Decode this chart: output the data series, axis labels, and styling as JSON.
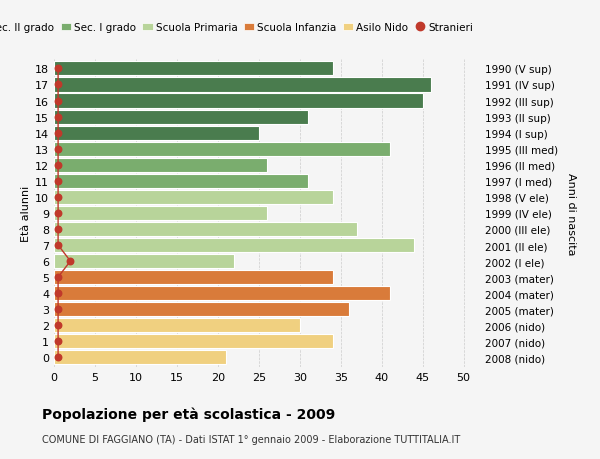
{
  "ages": [
    18,
    17,
    16,
    15,
    14,
    13,
    12,
    11,
    10,
    9,
    8,
    7,
    6,
    5,
    4,
    3,
    2,
    1,
    0
  ],
  "years": [
    "1990 (V sup)",
    "1991 (IV sup)",
    "1992 (III sup)",
    "1993 (II sup)",
    "1994 (I sup)",
    "1995 (III med)",
    "1996 (II med)",
    "1997 (I med)",
    "1998 (V ele)",
    "1999 (IV ele)",
    "2000 (III ele)",
    "2001 (II ele)",
    "2002 (I ele)",
    "2003 (mater)",
    "2004 (mater)",
    "2005 (mater)",
    "2006 (nido)",
    "2007 (nido)",
    "2008 (nido)"
  ],
  "bar_values": [
    34,
    46,
    45,
    31,
    25,
    41,
    26,
    31,
    34,
    26,
    37,
    44,
    22,
    34,
    41,
    36,
    30,
    34,
    21
  ],
  "bar_colors": [
    "#4a7c4e",
    "#4a7c4e",
    "#4a7c4e",
    "#4a7c4e",
    "#4a7c4e",
    "#7aad6e",
    "#7aad6e",
    "#7aad6e",
    "#b8d49a",
    "#b8d49a",
    "#b8d49a",
    "#b8d49a",
    "#b8d49a",
    "#d97b3a",
    "#d97b3a",
    "#d97b3a",
    "#f0d080",
    "#f0d080",
    "#f0d080"
  ],
  "stranieri_x": [
    0.5,
    0.5,
    0.5,
    0.5,
    0.5,
    0.5,
    0.5,
    0.5,
    0.5,
    0.5,
    0.5,
    0.5,
    2.0,
    0.5,
    0.5,
    0.5,
    0.5,
    0.5,
    0.5
  ],
  "stranieri_color": "#c0392b",
  "legend_labels": [
    "Sec. II grado",
    "Sec. I grado",
    "Scuola Primaria",
    "Scuola Infanzia",
    "Asilo Nido",
    "Stranieri"
  ],
  "legend_colors": [
    "#4a7c4e",
    "#7aad6e",
    "#b8d49a",
    "#d97b3a",
    "#f0d080",
    "#c0392b"
  ],
  "xlabel_vals": [
    0,
    5,
    10,
    15,
    20,
    25,
    30,
    35,
    40,
    45,
    50
  ],
  "xlim": [
    0,
    52
  ],
  "title_bold": "Popolazione per età scolastica - 2009",
  "subtitle": "COMUNE DI FAGGIANO (TA) - Dati ISTAT 1° gennaio 2009 - Elaborazione TUTTITALIA.IT",
  "ylabel_left": "Età alunni",
  "ylabel_right": "Anni di nascita",
  "bg_color": "#f5f5f5",
  "grid_color": "#cccccc",
  "bar_height": 0.88
}
